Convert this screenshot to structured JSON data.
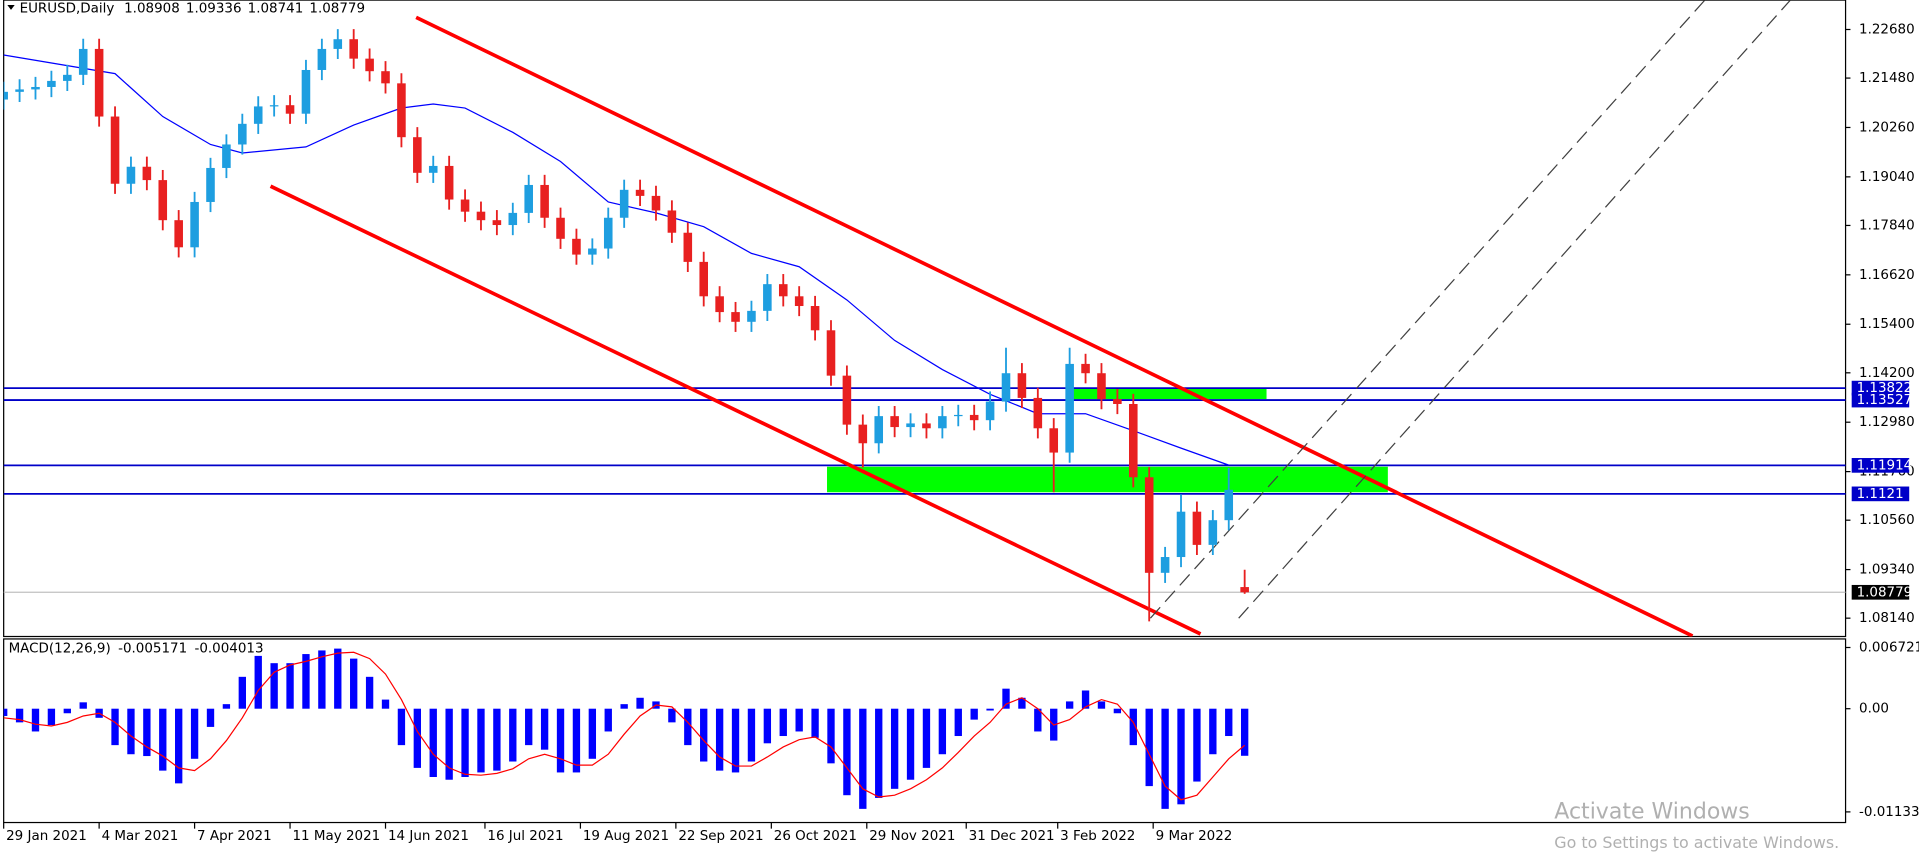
{
  "chart_data": [
    {
      "type": "candlestick",
      "title": "EURUSD,Daily",
      "up_color": "#1e9ee0",
      "down_color": "#e82020",
      "x": [
        0,
        4,
        8,
        12,
        16,
        20,
        24,
        28,
        32,
        36,
        40,
        44,
        48,
        52,
        56,
        60,
        64,
        68,
        72,
        76,
        80,
        84,
        88,
        92,
        96,
        100,
        104,
        108,
        112,
        116,
        120,
        124,
        128,
        132,
        136,
        140,
        144,
        148,
        152,
        156,
        160,
        164,
        168,
        172,
        176,
        180,
        184,
        188,
        192,
        196,
        200,
        204,
        208,
        212,
        216,
        220,
        224,
        228,
        232,
        236,
        240,
        244,
        248,
        252,
        256,
        260,
        264,
        268,
        272,
        276,
        280,
        284,
        288,
        292,
        296,
        300,
        304,
        308,
        312
      ],
      "values": [
        [
          1.2095,
          1.2139,
          1.207,
          1.2114
        ],
        [
          1.2114,
          1.2145,
          1.2089,
          1.212
        ],
        [
          1.212,
          1.2151,
          1.2095,
          1.2126
        ],
        [
          1.2126,
          1.2166,
          1.2101,
          1.2141
        ],
        [
          1.2141,
          1.2181,
          1.2116,
          1.2156
        ],
        [
          1.2156,
          1.2245,
          1.2131,
          1.222
        ],
        [
          1.222,
          1.2245,
          1.2028,
          1.2053
        ],
        [
          1.2053,
          1.2078,
          1.1862,
          1.1887
        ],
        [
          1.1887,
          1.1954,
          1.1862,
          1.1929
        ],
        [
          1.1929,
          1.1954,
          1.1871,
          1.1896
        ],
        [
          1.1896,
          1.1921,
          1.1772,
          1.1797
        ],
        [
          1.1797,
          1.1822,
          1.1705,
          1.173
        ],
        [
          1.173,
          1.1867,
          1.1705,
          1.1842
        ],
        [
          1.1842,
          1.1951,
          1.1817,
          1.1926
        ],
        [
          1.1926,
          1.2009,
          1.1901,
          1.1984
        ],
        [
          1.1984,
          1.206,
          1.1959,
          1.2035
        ],
        [
          1.2035,
          1.2103,
          1.201,
          1.2078
        ],
        [
          1.2078,
          1.2106,
          1.2053,
          1.2081
        ],
        [
          1.2081,
          1.2106,
          1.2035,
          1.206
        ],
        [
          1.206,
          1.2193,
          1.2035,
          1.2168
        ],
        [
          1.2168,
          1.2245,
          1.2143,
          1.222
        ],
        [
          1.222,
          1.2269,
          1.2195,
          1.2244
        ],
        [
          1.2244,
          1.2269,
          1.2171,
          1.2196
        ],
        [
          1.2196,
          1.2221,
          1.214,
          1.2165
        ],
        [
          1.2165,
          1.219,
          1.211,
          1.2135
        ],
        [
          1.2135,
          1.216,
          1.1977,
          1.2002
        ],
        [
          1.2002,
          1.2027,
          1.1889,
          1.1914
        ],
        [
          1.1914,
          1.1956,
          1.1889,
          1.1931
        ],
        [
          1.1931,
          1.1956,
          1.1823,
          1.1848
        ],
        [
          1.1848,
          1.1873,
          1.1793,
          1.1818
        ],
        [
          1.1818,
          1.1843,
          1.1772,
          1.1797
        ],
        [
          1.1797,
          1.1822,
          1.176,
          1.1785
        ],
        [
          1.1785,
          1.184,
          1.176,
          1.1815
        ],
        [
          1.1815,
          1.1909,
          1.179,
          1.1884
        ],
        [
          1.1884,
          1.1909,
          1.1778,
          1.1803
        ],
        [
          1.1803,
          1.1828,
          1.1726,
          1.1751
        ],
        [
          1.1751,
          1.1776,
          1.1687,
          1.1712
        ],
        [
          1.1712,
          1.1752,
          1.1687,
          1.1727
        ],
        [
          1.1727,
          1.1828,
          1.1702,
          1.1803
        ],
        [
          1.1803,
          1.1897,
          1.1778,
          1.1872
        ],
        [
          1.1872,
          1.1897,
          1.1832,
          1.1857
        ],
        [
          1.1857,
          1.1882,
          1.1796,
          1.1821
        ],
        [
          1.1821,
          1.1846,
          1.1741,
          1.1766
        ],
        [
          1.1766,
          1.1791,
          1.1669,
          1.1694
        ],
        [
          1.1694,
          1.1719,
          1.1584,
          1.1609
        ],
        [
          1.1609,
          1.1634,
          1.1545,
          1.157
        ],
        [
          1.157,
          1.1595,
          1.1521,
          1.1546
        ],
        [
          1.1546,
          1.1598,
          1.1521,
          1.1573
        ],
        [
          1.1573,
          1.1664,
          1.1548,
          1.1639
        ],
        [
          1.1639,
          1.1664,
          1.1584,
          1.1609
        ],
        [
          1.1609,
          1.1634,
          1.156,
          1.1585
        ],
        [
          1.1585,
          1.161,
          1.15,
          1.1525
        ],
        [
          1.1525,
          1.155,
          1.1388,
          1.1413
        ],
        [
          1.1413,
          1.1438,
          1.1267,
          1.1292
        ],
        [
          1.1292,
          1.1317,
          1.1186,
          1.1246
        ],
        [
          1.1246,
          1.1338,
          1.1221,
          1.1313
        ],
        [
          1.1313,
          1.1338,
          1.1261,
          1.1286
        ],
        [
          1.1286,
          1.132,
          1.1261,
          1.1295
        ],
        [
          1.1295,
          1.132,
          1.1258,
          1.1283
        ],
        [
          1.1283,
          1.1338,
          1.1258,
          1.1313
        ],
        [
          1.1313,
          1.1341,
          1.1288,
          1.1316
        ],
        [
          1.1316,
          1.1341,
          1.1278,
          1.1303
        ],
        [
          1.1303,
          1.1374,
          1.1278,
          1.1349
        ],
        [
          1.1349,
          1.1482,
          1.1324,
          1.1419
        ],
        [
          1.1419,
          1.1444,
          1.1333,
          1.1358
        ],
        [
          1.1358,
          1.1383,
          1.1258,
          1.1283
        ],
        [
          1.1283,
          1.1308,
          1.1125,
          1.1223
        ],
        [
          1.1223,
          1.1482,
          1.1198,
          1.1442
        ],
        [
          1.1442,
          1.1467,
          1.1394,
          1.1419
        ],
        [
          1.1419,
          1.1444,
          1.133,
          1.1355
        ],
        [
          1.1355,
          1.138,
          1.1318,
          1.1343
        ],
        [
          1.1343,
          1.1368,
          1.1137,
          1.1162
        ],
        [
          1.1162,
          1.1187,
          1.0806,
          1.0926
        ],
        [
          1.0926,
          1.099,
          1.0901,
          1.0965
        ],
        [
          1.0965,
          1.112,
          1.094,
          1.1077
        ],
        [
          1.1077,
          1.1102,
          1.097,
          1.0995
        ],
        [
          1.0995,
          1.1081,
          1.097,
          1.1056
        ],
        [
          1.1056,
          1.1185,
          1.1031,
          1.1131
        ],
        [
          1.08908,
          1.09336,
          1.08741,
          1.08779
        ]
      ],
      "ma": {
        "color": "#0000ff",
        "x": [
          0,
          28,
          40,
          52,
          60,
          76,
          88,
          100,
          108,
          116,
          128,
          140,
          152,
          164,
          176,
          188,
          200,
          212,
          224,
          236,
          248,
          260,
          272,
          284,
          296,
          308
        ],
        "values": [
          1.2205,
          1.2159,
          1.2053,
          1.1984,
          1.1963,
          1.1978,
          1.2032,
          1.2074,
          1.2084,
          1.2074,
          1.2014,
          1.1942,
          1.1842,
          1.1815,
          1.1781,
          1.1715,
          1.1682,
          1.16,
          1.15,
          1.1428,
          1.1367,
          1.1319,
          1.1319,
          1.1277,
          1.1234,
          1.1192
        ]
      },
      "hlines": [
        {
          "value": 1.13822,
          "color": "#0000c8"
        },
        {
          "value": 1.13527,
          "color": "#0000c8"
        },
        {
          "value": 1.11914,
          "color": "#0000c8"
        },
        {
          "value": 1.1121,
          "color": "#0000c8"
        }
      ],
      "current_color": "#c0c0c0",
      "zones": [
        {
          "color": "#00ff00",
          "x": [
            268,
            317.5
          ],
          "y": [
            1.1355,
            1.1381
          ]
        },
        {
          "color": "#00ff00",
          "x": [
            207,
            348
          ],
          "y": [
            1.1125,
            1.1188
          ]
        }
      ],
      "trendlines": [
        {
          "color": "#ff0000",
          "dashed": false,
          "points": [
            [
              103.7,
              1.2298
            ],
            [
              424.6,
              1.077
            ]
          ]
        },
        {
          "color": "#ff0000",
          "dashed": false,
          "points": [
            [
              67.1,
              1.1881
            ],
            [
              300.9,
              1.0775
            ]
          ]
        },
        {
          "color": "#404040",
          "dashed": true,
          "points": [
            [
              288.3,
              1.0814
            ],
            [
              427.7,
              1.23406
            ]
          ]
        },
        {
          "color": "#404040",
          "dashed": true,
          "points": [
            [
              310.5,
              1.0814
            ],
            [
              449.2,
              1.23406
            ]
          ]
        }
      ],
      "xlim": [
        0,
        464
      ],
      "xticks": [
        {
          "value": 0,
          "label": "29 Jan 2021"
        },
        {
          "value": 24,
          "label": "4 Mar 2021"
        },
        {
          "value": 48,
          "label": "7 Apr 2021"
        },
        {
          "value": 72,
          "label": "11 May 2021"
        },
        {
          "value": 96,
          "label": "14 Jun 2021"
        },
        {
          "value": 121,
          "label": "16 Jul 2021"
        },
        {
          "value": 145,
          "label": "19 Aug 2021"
        },
        {
          "value": 169,
          "label": "22 Sep 2021"
        },
        {
          "value": 193,
          "label": "26 Oct 2021"
        },
        {
          "value": 217,
          "label": "29 Nov 2021"
        },
        {
          "value": 242,
          "label": "31 Dec 2021"
        },
        {
          "value": 265,
          "label": "3 Feb 2022"
        },
        {
          "value": 289,
          "label": "9 Mar 2022"
        }
      ],
      "ylim": [
        1.07687,
        1.23406
      ],
      "yticks": [
        {
          "value": 1.2268,
          "label": "1.22680"
        },
        {
          "value": 1.2148,
          "label": "1.21480"
        },
        {
          "value": 1.2026,
          "label": "1.20260"
        },
        {
          "value": 1.1904,
          "label": "1.19040"
        },
        {
          "value": 1.1784,
          "label": "1.17840"
        },
        {
          "value": 1.1662,
          "label": "1.16620"
        },
        {
          "value": 1.154,
          "label": "1.15400"
        },
        {
          "value": 1.142,
          "label": "1.14200"
        },
        {
          "value": 1.1298,
          "label": "1.12980"
        },
        {
          "value": 1.1176,
          "label": "1.11760"
        },
        {
          "value": 1.1056,
          "label": "1.10560"
        },
        {
          "value": 1.0934,
          "label": "1.09340"
        },
        {
          "value": 1.0814,
          "label": "1.08140"
        }
      ]
    },
    {
      "type": "macd",
      "title": "MACD(12,26,9)",
      "color": "#0000ff",
      "signal_color": "#ff0000",
      "values": [
        -0.0008,
        -0.0015,
        -0.0025,
        -0.0018,
        -0.0005,
        0.0007,
        -0.001,
        -0.004,
        -0.005,
        -0.0052,
        -0.0068,
        -0.0082,
        -0.0055,
        -0.002,
        0.0005,
        0.0035,
        0.0058,
        0.005,
        0.005,
        0.006,
        0.0064,
        0.0066,
        0.0055,
        0.0035,
        0.001,
        -0.004,
        -0.0065,
        -0.0075,
        -0.0078,
        -0.0075,
        -0.007,
        -0.0068,
        -0.0058,
        -0.004,
        -0.0045,
        -0.007,
        -0.007,
        -0.0055,
        -0.0025,
        0.0005,
        0.0012,
        0.0008,
        -0.0015,
        -0.004,
        -0.0058,
        -0.0068,
        -0.007,
        -0.0058,
        -0.0038,
        -0.003,
        -0.0025,
        -0.0032,
        -0.006,
        -0.0095,
        -0.011,
        -0.0098,
        -0.0088,
        -0.0078,
        -0.0065,
        -0.005,
        -0.003,
        -0.0012,
        -0.0002,
        0.0022,
        0.0012,
        -0.0025,
        -0.0035,
        0.0008,
        0.002,
        0.0008,
        -0.0005,
        -0.004,
        -0.0085,
        -0.011,
        -0.0105,
        -0.008,
        -0.005,
        -0.003,
        -0.005171
      ],
      "signal": [
        -0.001,
        -0.0012,
        -0.0017,
        -0.0019,
        -0.0015,
        -0.0008,
        -0.0005,
        -0.0015,
        -0.003,
        -0.0042,
        -0.0052,
        -0.0065,
        -0.0068,
        -0.0055,
        -0.0035,
        -0.001,
        0.002,
        0.004,
        0.0048,
        0.0052,
        0.0057,
        0.0061,
        0.0062,
        0.0055,
        0.0038,
        0.001,
        -0.0025,
        -0.005,
        -0.0065,
        -0.0072,
        -0.0073,
        -0.0071,
        -0.0066,
        -0.0055,
        -0.005,
        -0.0055,
        -0.0062,
        -0.0062,
        -0.005,
        -0.0028,
        -0.0008,
        0.0004,
        0.0002,
        -0.0015,
        -0.0035,
        -0.0053,
        -0.0063,
        -0.0063,
        -0.0053,
        -0.0042,
        -0.0034,
        -0.0031,
        -0.0042,
        -0.0065,
        -0.0088,
        -0.0097,
        -0.0095,
        -0.0088,
        -0.0078,
        -0.0065,
        -0.0048,
        -0.003,
        -0.0015,
        0.0005,
        0.0012,
        0,
        -0.0018,
        -0.0012,
        0.0002,
        0.001,
        0.0005,
        -0.0015,
        -0.005,
        -0.0085,
        -0.01,
        -0.0095,
        -0.0075,
        -0.0055,
        -0.004013
      ],
      "ylim": [
        -0.0125,
        0.00766
      ],
      "yticks": [
        0.006721,
        {
          "value": 0,
          "label": "0.00"
        },
        -0.011333
      ]
    }
  ],
  "watermark": {
    "title": "Activate Windows",
    "subtitle": "Go to Settings to activate Windows."
  }
}
